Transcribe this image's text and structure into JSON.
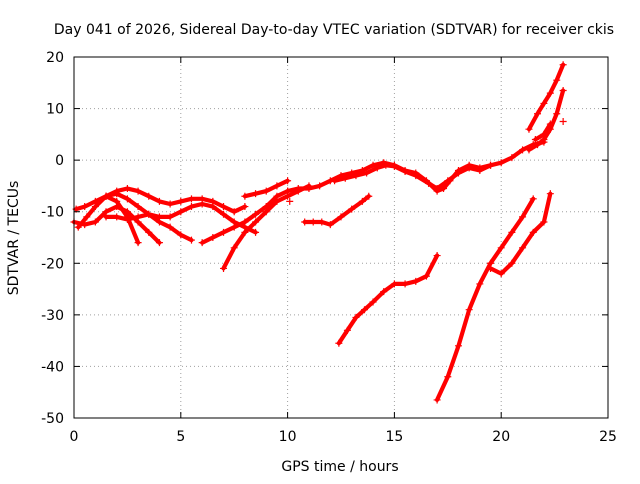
{
  "chart_data": {
    "type": "scatter",
    "title": "Day 041 of 2026, Sidereal Day-to-day VTEC variation (SDTVAR) for receiver ckis",
    "xlabel": "GPS time / hours",
    "ylabel": "SDTVAR / TECUs",
    "xlim": [
      0,
      25
    ],
    "ylim": [
      -50,
      20
    ],
    "xticks": [
      0,
      5,
      10,
      15,
      20,
      25
    ],
    "yticks": [
      -50,
      -40,
      -30,
      -20,
      -10,
      0,
      10,
      20
    ],
    "xtick_labels": [
      "0",
      "5",
      "10",
      "15",
      "20",
      "25"
    ],
    "ytick_labels": [
      "-50",
      "-40",
      "-30",
      "-20",
      "-10",
      "0",
      "10",
      "20"
    ],
    "grid": true,
    "marker": "+",
    "color": "#ff0000",
    "series": [
      {
        "name": "arc-main",
        "x": [
          10.0,
          10.5,
          11.0,
          11.5,
          12.0,
          12.5,
          13.0,
          13.5,
          14.0,
          14.5,
          15.0,
          15.5,
          16.0,
          16.5,
          17.0,
          17.3,
          17.6,
          18.0,
          18.5,
          19.0,
          19.5,
          20.0,
          20.5,
          21.0,
          21.5,
          22.0
        ],
        "y": [
          -6,
          -5.5,
          -5.5,
          -5,
          -4,
          -3,
          -2.5,
          -2,
          -1,
          -0.5,
          -1,
          -2,
          -2.5,
          -4,
          -6,
          -5.5,
          -4,
          -2,
          -1,
          -1.5,
          -1,
          -0.5,
          0.5,
          2,
          3,
          3.5
        ]
      },
      {
        "name": "arc-main-b",
        "x": [
          12.2,
          12.7,
          13.2,
          13.7,
          14.2,
          14.6,
          15.0,
          15.5,
          16.0,
          16.6,
          17.0,
          17.5,
          18.0,
          18.5,
          19.0,
          19.5
        ],
        "y": [
          -4,
          -3.5,
          -3,
          -2.5,
          -1.5,
          -1,
          -1.2,
          -2.2,
          -3,
          -4.5,
          -5.5,
          -4,
          -2.5,
          -1.5,
          -2,
          -1
        ]
      },
      {
        "name": "arc-early-1",
        "x": [
          0.1,
          0.5,
          1.0,
          1.5,
          2.0,
          2.5,
          3.0,
          3.5,
          4.0,
          4.5,
          5.0,
          5.5,
          6.0,
          6.5,
          7.0,
          7.5,
          8.0
        ],
        "y": [
          -9.5,
          -9,
          -8,
          -7,
          -6,
          -5.5,
          -6,
          -7,
          -8,
          -8.5,
          -8,
          -7.5,
          -7.5,
          -8,
          -9,
          -10,
          -9
        ]
      },
      {
        "name": "arc-early-2",
        "x": [
          0.2,
          0.6,
          1.0,
          1.5,
          2.0,
          2.5,
          3.0
        ],
        "y": [
          -13,
          -11,
          -9,
          -7,
          -8,
          -11,
          -16
        ]
      },
      {
        "name": "arc-early-3",
        "x": [
          0.0,
          0.5,
          1.0,
          1.5,
          2.0,
          2.5,
          3.0,
          3.5,
          4.0
        ],
        "y": [
          -12,
          -12.5,
          -12,
          -10,
          -9,
          -10,
          -12,
          -14,
          -16
        ]
      },
      {
        "name": "arc-early-4",
        "x": [
          1.5,
          2.0,
          2.5,
          3.0,
          3.5,
          4.0,
          4.5,
          5.0,
          5.5
        ],
        "y": [
          -7,
          -6.5,
          -7.5,
          -9,
          -10.5,
          -12,
          -13,
          -14.5,
          -15.5
        ]
      },
      {
        "name": "arc-early-5",
        "x": [
          1.5,
          2.0,
          2.5,
          3.0,
          3.5,
          4.0,
          4.5,
          5.0,
          5.5,
          6.0,
          6.5,
          7.0,
          7.5,
          8.0,
          8.5
        ],
        "y": [
          -11,
          -11,
          -11.5,
          -11,
          -10.5,
          -11,
          -11,
          -10,
          -9,
          -8.5,
          -9,
          -10.5,
          -12,
          -13,
          -14
        ]
      },
      {
        "name": "arc-early-6",
        "x": [
          6.0,
          6.5,
          7.0,
          7.5,
          8.0,
          8.5,
          9.0,
          9.5,
          10.0
        ],
        "y": [
          -16,
          -15,
          -14,
          -13,
          -12,
          -10.5,
          -9,
          -7,
          -6
        ]
      },
      {
        "name": "arc-early-7",
        "x": [
          7.0,
          7.5,
          8.0,
          8.5,
          9.0,
          9.5,
          10.0,
          10.5,
          11.0
        ],
        "y": [
          -21,
          -17,
          -14,
          -12,
          -10,
          -8,
          -7,
          -6,
          -5
        ]
      },
      {
        "name": "arc-early-8",
        "x": [
          8.0,
          8.5,
          9.0,
          9.5,
          10.0
        ],
        "y": [
          -7,
          -6.5,
          -6,
          -5,
          -4
        ]
      },
      {
        "name": "arc-mid-1",
        "x": [
          10.8,
          11.2,
          11.6,
          12.0,
          12.5,
          13.0,
          13.5,
          13.8
        ],
        "y": [
          -12,
          -12,
          -12,
          -12.5,
          -11,
          -9.5,
          -8,
          -7
        ]
      },
      {
        "name": "arc-mid-2",
        "x": [
          12.4,
          12.8,
          13.2,
          13.6,
          14.0,
          14.5,
          15.0,
          15.5,
          16.0,
          16.5,
          17.0
        ],
        "y": [
          -35.5,
          -33,
          -30.5,
          -29,
          -27.5,
          -25.5,
          -24,
          -24,
          -23.5,
          -22.5,
          -18.5
        ]
      },
      {
        "name": "arc-late-1",
        "x": [
          17.0,
          17.5,
          18.0,
          18.5,
          19.0,
          19.5,
          20.0,
          20.5,
          21.0,
          21.5
        ],
        "y": [
          -46.5,
          -42,
          -36,
          -29,
          -24,
          -20,
          -17,
          -14,
          -11,
          -7.5
        ]
      },
      {
        "name": "arc-late-2",
        "x": [
          19.5,
          20.0,
          20.5,
          21.0,
          21.5,
          22.0,
          22.3
        ],
        "y": [
          -21,
          -22,
          -20,
          -17,
          -14,
          -12,
          -6.5
        ]
      },
      {
        "name": "arc-late-3",
        "x": [
          21.3,
          21.7,
          22.0,
          22.3,
          22.6,
          22.9
        ],
        "y": [
          6,
          9,
          11,
          13,
          15.5,
          18.5
        ]
      },
      {
        "name": "arc-late-4",
        "x": [
          21.3,
          21.7,
          22.0,
          22.3,
          22.6,
          22.9
        ],
        "y": [
          2,
          3,
          4,
          6,
          9,
          13.5
        ]
      },
      {
        "name": "arc-late-5",
        "x": [
          21.6,
          22.0,
          22.3
        ],
        "y": [
          4,
          5,
          7
        ]
      }
    ],
    "isolated_points": [
      {
        "x": 22.9,
        "y": 7.5
      },
      {
        "x": 10.1,
        "y": -8
      }
    ]
  }
}
